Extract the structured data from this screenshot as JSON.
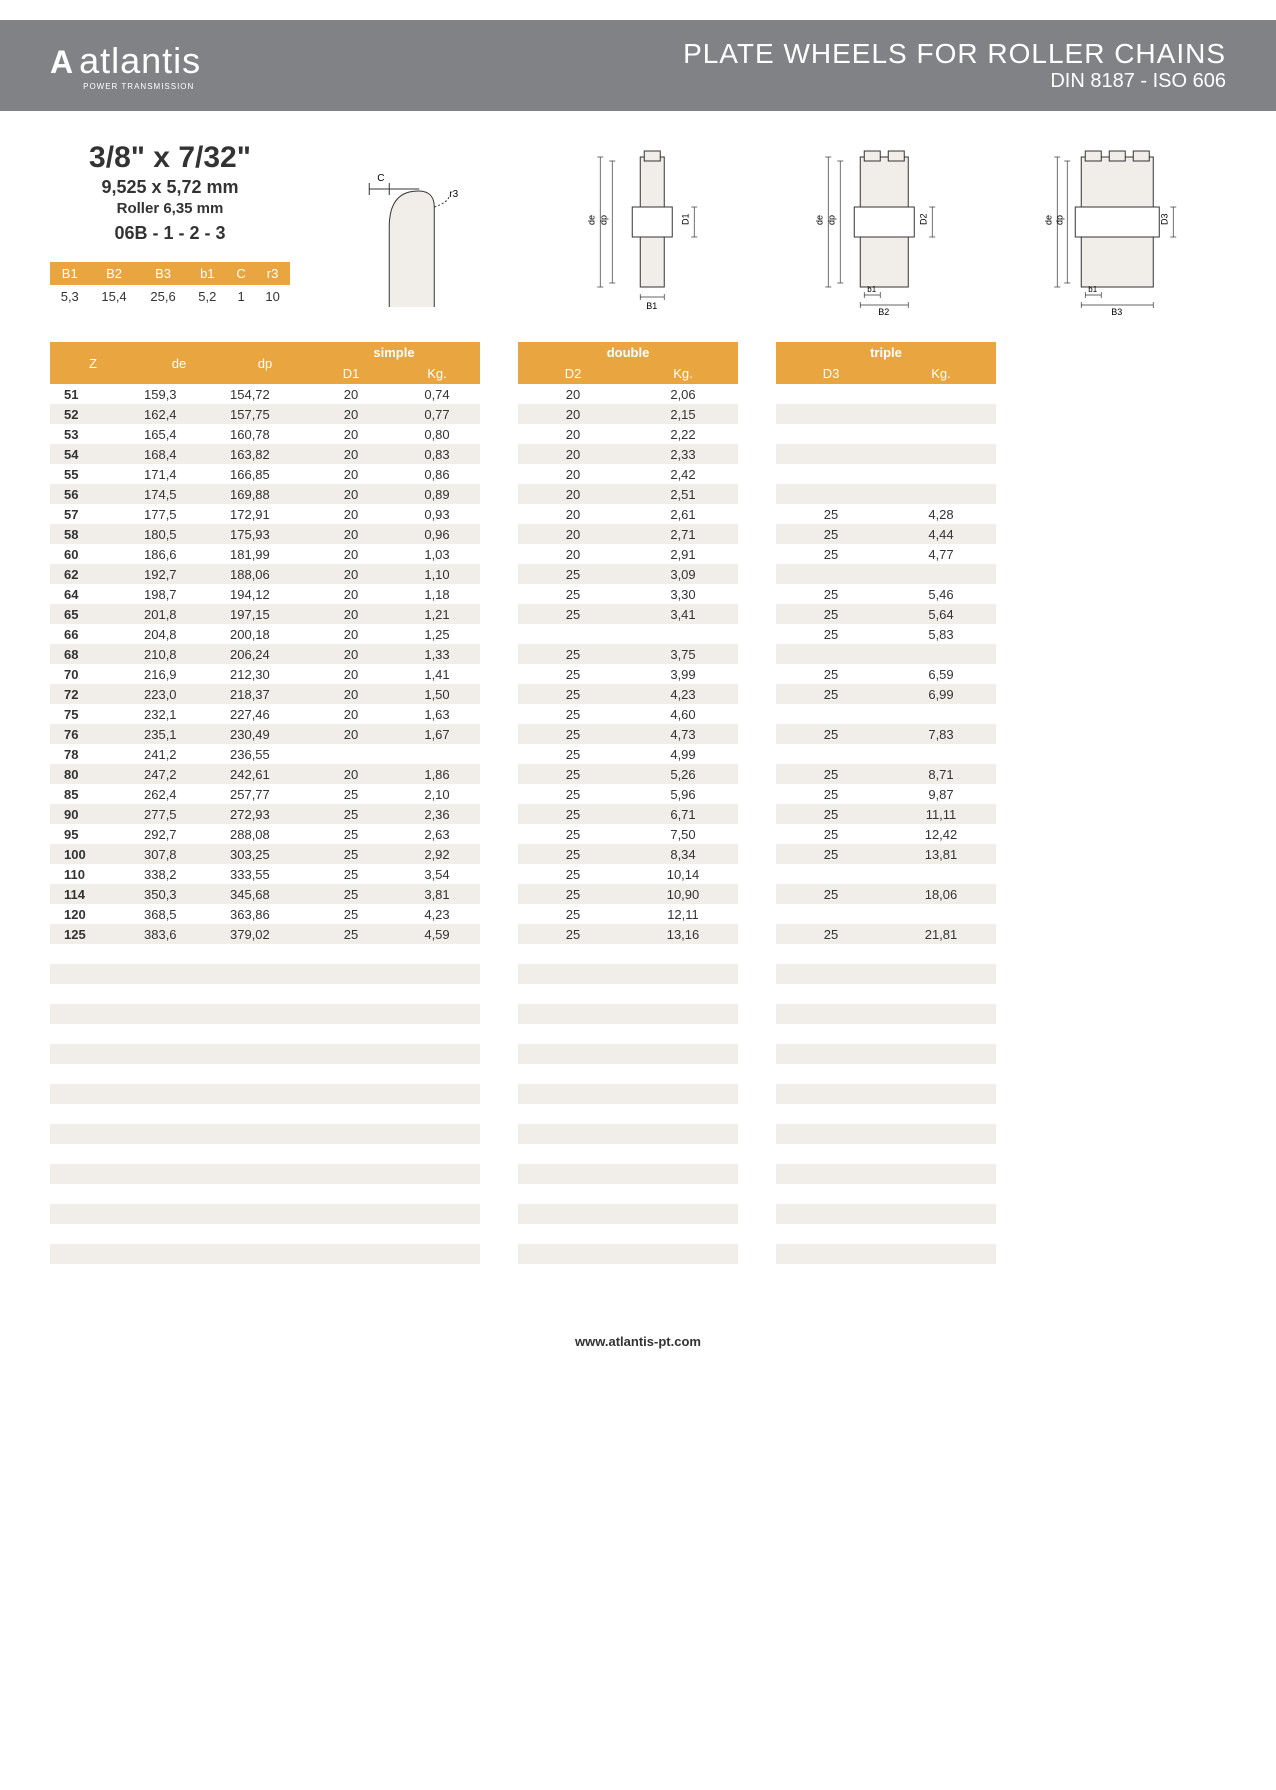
{
  "header": {
    "logo_mark": "A",
    "logo_text": "atlantis",
    "logo_sub": "POWER TRANSMISSION",
    "title": "PLATE WHEELS FOR ROLLER CHAINS",
    "subtitle": "DIN 8187 - ISO 606"
  },
  "spec": {
    "title": "3/8\" x 7/32\"",
    "mm": "9,525 x 5,72 mm",
    "roller": "Roller 6,35 mm",
    "code": "06B - 1 - 2 - 3"
  },
  "small_table": {
    "headers": [
      "B1",
      "B2",
      "B3",
      "b1",
      "C",
      "r3"
    ],
    "values": [
      "5,3",
      "15,4",
      "25,6",
      "5,2",
      "1",
      "10"
    ]
  },
  "diagrams": {
    "labels": {
      "c": "C",
      "r3": "r3",
      "de": "de",
      "dp": "dp",
      "D1": "D1",
      "D2": "D2",
      "D3": "D3",
      "B1": "B1",
      "b1": "b1",
      "B2": "B2",
      "B3": "B3"
    }
  },
  "main_table": {
    "groups": {
      "simple": "simple",
      "double": "double",
      "triple": "triple"
    },
    "left_headers": [
      "Z",
      "de",
      "dp"
    ],
    "sub_headers": {
      "simple": [
        "D1",
        "Kg."
      ],
      "double": [
        "D2",
        "Kg."
      ],
      "triple": [
        "D3",
        "Kg."
      ]
    },
    "rows": [
      {
        "z": "51",
        "de": "159,3",
        "dp": "154,72",
        "d1": "20",
        "kg1": "0,74",
        "d2": "20",
        "kg2": "2,06",
        "d3": "",
        "kg3": ""
      },
      {
        "z": "52",
        "de": "162,4",
        "dp": "157,75",
        "d1": "20",
        "kg1": "0,77",
        "d2": "20",
        "kg2": "2,15",
        "d3": "",
        "kg3": ""
      },
      {
        "z": "53",
        "de": "165,4",
        "dp": "160,78",
        "d1": "20",
        "kg1": "0,80",
        "d2": "20",
        "kg2": "2,22",
        "d3": "",
        "kg3": ""
      },
      {
        "z": "54",
        "de": "168,4",
        "dp": "163,82",
        "d1": "20",
        "kg1": "0,83",
        "d2": "20",
        "kg2": "2,33",
        "d3": "",
        "kg3": ""
      },
      {
        "z": "55",
        "de": "171,4",
        "dp": "166,85",
        "d1": "20",
        "kg1": "0,86",
        "d2": "20",
        "kg2": "2,42",
        "d3": "",
        "kg3": ""
      },
      {
        "z": "56",
        "de": "174,5",
        "dp": "169,88",
        "d1": "20",
        "kg1": "0,89",
        "d2": "20",
        "kg2": "2,51",
        "d3": "",
        "kg3": ""
      },
      {
        "z": "57",
        "de": "177,5",
        "dp": "172,91",
        "d1": "20",
        "kg1": "0,93",
        "d2": "20",
        "kg2": "2,61",
        "d3": "25",
        "kg3": "4,28"
      },
      {
        "z": "58",
        "de": "180,5",
        "dp": "175,93",
        "d1": "20",
        "kg1": "0,96",
        "d2": "20",
        "kg2": "2,71",
        "d3": "25",
        "kg3": "4,44"
      },
      {
        "z": "60",
        "de": "186,6",
        "dp": "181,99",
        "d1": "20",
        "kg1": "1,03",
        "d2": "20",
        "kg2": "2,91",
        "d3": "25",
        "kg3": "4,77"
      },
      {
        "z": "62",
        "de": "192,7",
        "dp": "188,06",
        "d1": "20",
        "kg1": "1,10",
        "d2": "25",
        "kg2": "3,09",
        "d3": "",
        "kg3": ""
      },
      {
        "z": "64",
        "de": "198,7",
        "dp": "194,12",
        "d1": "20",
        "kg1": "1,18",
        "d2": "25",
        "kg2": "3,30",
        "d3": "25",
        "kg3": "5,46"
      },
      {
        "z": "65",
        "de": "201,8",
        "dp": "197,15",
        "d1": "20",
        "kg1": "1,21",
        "d2": "25",
        "kg2": "3,41",
        "d3": "25",
        "kg3": "5,64"
      },
      {
        "z": "66",
        "de": "204,8",
        "dp": "200,18",
        "d1": "20",
        "kg1": "1,25",
        "d2": "",
        "kg2": "",
        "d3": "25",
        "kg3": "5,83"
      },
      {
        "z": "68",
        "de": "210,8",
        "dp": "206,24",
        "d1": "20",
        "kg1": "1,33",
        "d2": "25",
        "kg2": "3,75",
        "d3": "",
        "kg3": ""
      },
      {
        "z": "70",
        "de": "216,9",
        "dp": "212,30",
        "d1": "20",
        "kg1": "1,41",
        "d2": "25",
        "kg2": "3,99",
        "d3": "25",
        "kg3": "6,59"
      },
      {
        "z": "72",
        "de": "223,0",
        "dp": "218,37",
        "d1": "20",
        "kg1": "1,50",
        "d2": "25",
        "kg2": "4,23",
        "d3": "25",
        "kg3": "6,99"
      },
      {
        "z": "75",
        "de": "232,1",
        "dp": "227,46",
        "d1": "20",
        "kg1": "1,63",
        "d2": "25",
        "kg2": "4,60",
        "d3": "",
        "kg3": ""
      },
      {
        "z": "76",
        "de": "235,1",
        "dp": "230,49",
        "d1": "20",
        "kg1": "1,67",
        "d2": "25",
        "kg2": "4,73",
        "d3": "25",
        "kg3": "7,83"
      },
      {
        "z": "78",
        "de": "241,2",
        "dp": "236,55",
        "d1": "",
        "kg1": "",
        "d2": "25",
        "kg2": "4,99",
        "d3": "",
        "kg3": ""
      },
      {
        "z": "80",
        "de": "247,2",
        "dp": "242,61",
        "d1": "20",
        "kg1": "1,86",
        "d2": "25",
        "kg2": "5,26",
        "d3": "25",
        "kg3": "8,71"
      },
      {
        "z": "85",
        "de": "262,4",
        "dp": "257,77",
        "d1": "25",
        "kg1": "2,10",
        "d2": "25",
        "kg2": "5,96",
        "d3": "25",
        "kg3": "9,87"
      },
      {
        "z": "90",
        "de": "277,5",
        "dp": "272,93",
        "d1": "25",
        "kg1": "2,36",
        "d2": "25",
        "kg2": "6,71",
        "d3": "25",
        "kg3": "11,11"
      },
      {
        "z": "95",
        "de": "292,7",
        "dp": "288,08",
        "d1": "25",
        "kg1": "2,63",
        "d2": "25",
        "kg2": "7,50",
        "d3": "25",
        "kg3": "12,42"
      },
      {
        "z": "100",
        "de": "307,8",
        "dp": "303,25",
        "d1": "25",
        "kg1": "2,92",
        "d2": "25",
        "kg2": "8,34",
        "d3": "25",
        "kg3": "13,81"
      },
      {
        "z": "110",
        "de": "338,2",
        "dp": "333,55",
        "d1": "25",
        "kg1": "3,54",
        "d2": "25",
        "kg2": "10,14",
        "d3": "",
        "kg3": ""
      },
      {
        "z": "114",
        "de": "350,3",
        "dp": "345,68",
        "d1": "25",
        "kg1": "3,81",
        "d2": "25",
        "kg2": "10,90",
        "d3": "25",
        "kg3": "18,06"
      },
      {
        "z": "120",
        "de": "368,5",
        "dp": "363,86",
        "d1": "25",
        "kg1": "4,23",
        "d2": "25",
        "kg2": "12,11",
        "d3": "",
        "kg3": ""
      },
      {
        "z": "125",
        "de": "383,6",
        "dp": "379,02",
        "d1": "25",
        "kg1": "4,59",
        "d2": "25",
        "kg2": "13,16",
        "d3": "25",
        "kg3": "21,81"
      }
    ],
    "empty_rows": 17
  },
  "footer": {
    "url": "www.atlantis-pt.com"
  },
  "colors": {
    "header_bg": "#808286",
    "accent": "#e9a53f",
    "row_even": "#f1eeea"
  }
}
